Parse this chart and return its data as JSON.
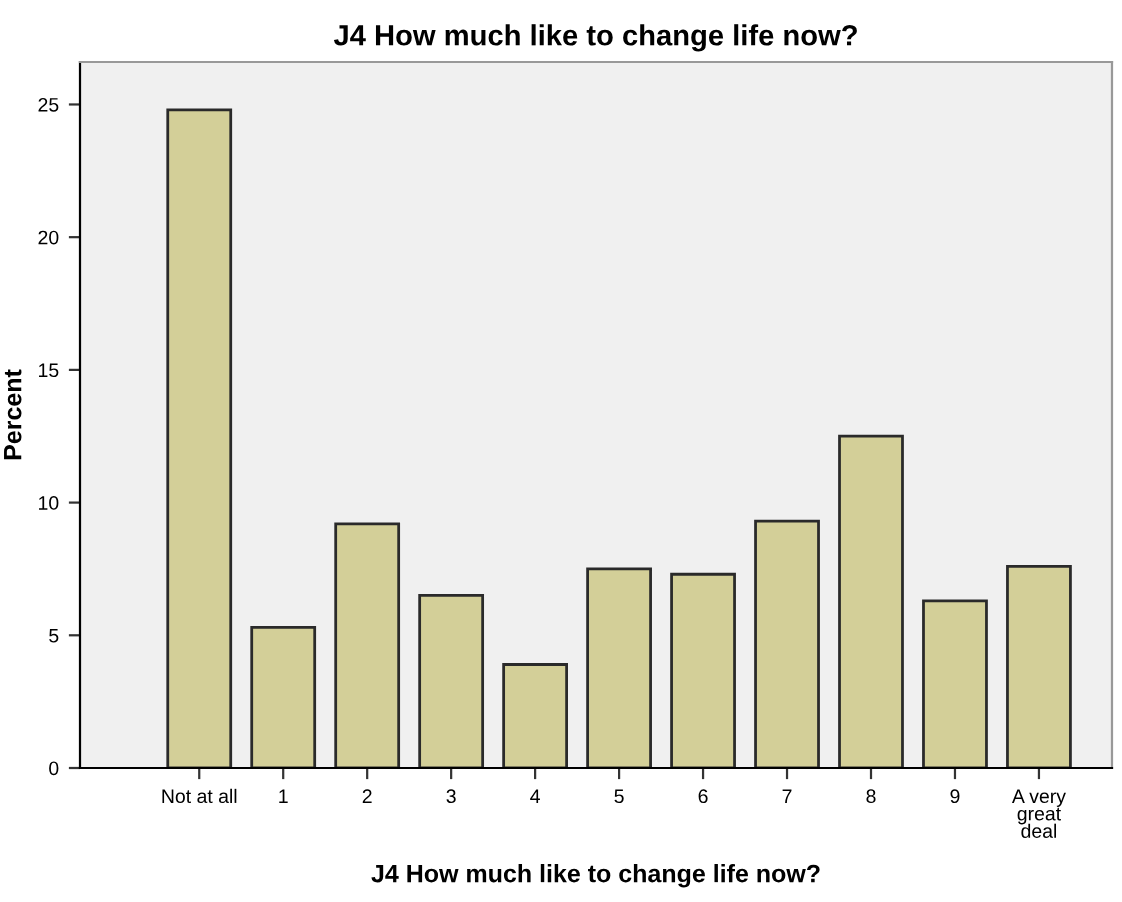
{
  "chart_data": {
    "type": "bar",
    "title": "J4 How much like to change life now?",
    "xlabel": "J4 How much like to change life now?",
    "ylabel": "Percent",
    "categories": [
      "Not at all",
      "1",
      "2",
      "3",
      "4",
      "5",
      "6",
      "7",
      "8",
      "9",
      "A very\ngreat\ndeal"
    ],
    "values": [
      24.8,
      5.3,
      9.2,
      6.5,
      3.9,
      7.5,
      7.3,
      9.3,
      12.5,
      6.3,
      7.6
    ],
    "color": "#d3cf98",
    "ylim": [
      0,
      26.6
    ],
    "yticks": [
      0,
      5,
      10,
      15,
      20,
      25
    ],
    "grid": false
  }
}
